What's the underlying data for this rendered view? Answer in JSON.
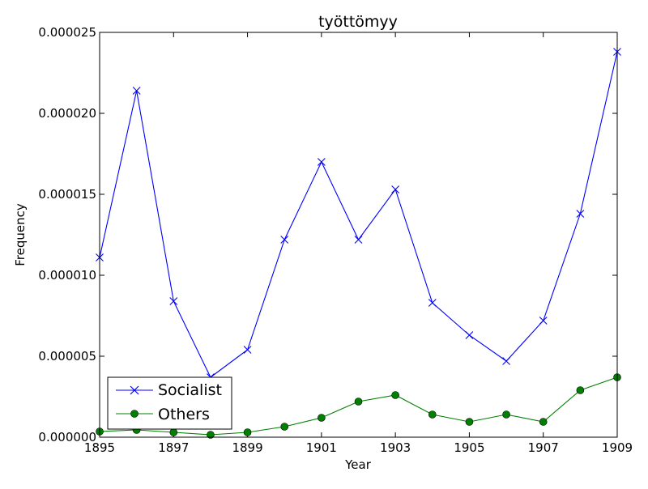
{
  "chart_data": {
    "type": "line",
    "title": "työttömyy",
    "xlabel": "Year",
    "ylabel": "Frequency",
    "xlim": [
      1895,
      1909
    ],
    "ylim": [
      0,
      2.5e-05
    ],
    "x_ticks": [
      "1895",
      "1897",
      "1899",
      "1901",
      "1903",
      "1905",
      "1907",
      "1909"
    ],
    "y_ticks": [
      "0.000000",
      "0.000005",
      "0.000010",
      "0.000015",
      "0.000020",
      "0.000025"
    ],
    "grid": false,
    "legend_position": "lower-left",
    "x": [
      1895,
      1896,
      1897,
      1898,
      1899,
      1900,
      1901,
      1902,
      1903,
      1904,
      1905,
      1906,
      1907,
      1908,
      1909
    ],
    "series": [
      {
        "name": "Socialist",
        "color": "#0000ff",
        "marker": "x",
        "values": [
          1.11e-05,
          2.14e-05,
          8.4e-06,
          3.7e-06,
          5.4e-06,
          1.22e-05,
          1.7e-05,
          1.22e-05,
          1.53e-05,
          8.3e-06,
          6.3e-06,
          4.7e-06,
          7.2e-06,
          1.38e-05,
          2.38e-05
        ]
      },
      {
        "name": "Others",
        "color": "#008000",
        "marker": "o",
        "values": [
          3.5e-07,
          4.5e-07,
          3e-07,
          1.5e-07,
          3e-07,
          6.5e-07,
          1.2e-06,
          2.2e-06,
          2.6e-06,
          1.4e-06,
          9.5e-07,
          1.4e-06,
          9.5e-07,
          2.9e-06,
          3.7e-06
        ]
      }
    ]
  }
}
